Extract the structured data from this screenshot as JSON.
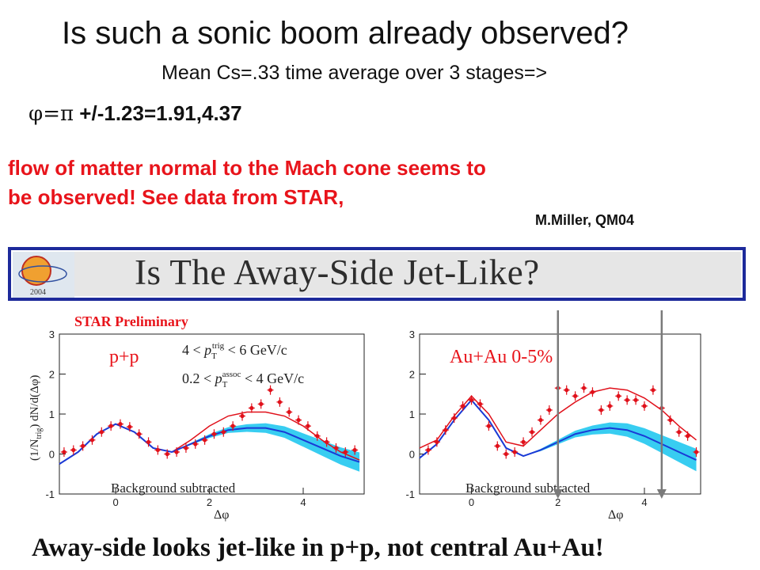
{
  "slide": {
    "title": "Is such a sonic boom  already observed?",
    "subtitle": "Mean Cs=.33 time average over 3 stages=>",
    "phi_symbols": "φ=π",
    "phi_text": " +/-1.23=1.91,4.37",
    "flow_line1": "flow of matter normal to the Mach cone seems to",
    "flow_line2": "be observed! See data from STAR,",
    "credit": "M.Miller, QM04",
    "footer": "Away-side looks jet-like in p+p, not central Au+Au!"
  },
  "banner": {
    "title": "Is The Away-Side Jet-Like?",
    "logo_text": "2004"
  },
  "colors": {
    "red_text": "#e8141b",
    "banner_border": "#1d2a9b",
    "band": "#22c8f0",
    "data_red": "#e0101a",
    "model_blue": "#1a3ad6"
  },
  "chart_data": [
    {
      "type": "scatter",
      "preliminary_label": "STAR Preliminary",
      "system_label": "p+p",
      "cut1_prefix": "4 < ",
      "cut1_sup": "trig",
      "cut1_suffix": " < 6 GeV/c",
      "cut2_prefix": "0.2 < ",
      "cut2_sup": "assoc",
      "cut2_suffix": " < 4 GeV/c",
      "pt_symbol": "p",
      "pt_sub": "T",
      "footnote": "Background subtracted",
      "ylabel_prefix": "(1/N",
      "ylabel_sub": "trig",
      "ylabel_suffix": ") dN/d(Δφ)",
      "xlabel": "Δφ",
      "xlim": [
        -1.2,
        5.3
      ],
      "ylim": [
        -1,
        3
      ],
      "x_ticks": [
        0,
        2,
        4
      ],
      "y_ticks": [
        -1,
        0,
        1,
        2,
        3
      ],
      "x_tick_labels": [
        "0",
        "2",
        "4"
      ],
      "y_tick_labels": [
        "-1",
        "0",
        "1",
        "2",
        "3"
      ],
      "data_x": [
        -1.1,
        -0.9,
        -0.7,
        -0.5,
        -0.3,
        -0.1,
        0.1,
        0.3,
        0.5,
        0.7,
        0.9,
        1.1,
        1.3,
        1.5,
        1.7,
        1.9,
        2.1,
        2.3,
        2.5,
        2.7,
        2.9,
        3.1,
        3.3,
        3.5,
        3.7,
        3.9,
        4.1,
        4.3,
        4.5,
        4.7,
        4.9,
        5.1
      ],
      "data_y": [
        0.05,
        0.1,
        0.2,
        0.35,
        0.55,
        0.7,
        0.75,
        0.68,
        0.5,
        0.3,
        0.1,
        0.0,
        0.05,
        0.15,
        0.25,
        0.35,
        0.5,
        0.55,
        0.7,
        0.95,
        1.15,
        1.25,
        1.6,
        1.3,
        1.05,
        0.85,
        0.7,
        0.45,
        0.3,
        0.15,
        0.05,
        0.1
      ],
      "fit_red_x": [
        -1.2,
        -0.8,
        -0.4,
        0.0,
        0.4,
        0.8,
        1.2,
        1.6,
        2.0,
        2.4,
        2.8,
        3.2,
        3.6,
        4.0,
        4.4,
        4.8,
        5.2
      ],
      "fit_red_y": [
        -0.25,
        0.05,
        0.5,
        0.75,
        0.55,
        0.15,
        0.05,
        0.35,
        0.7,
        0.95,
        1.05,
        1.05,
        0.95,
        0.7,
        0.35,
        0.05,
        -0.15
      ],
      "model_blue_x": [
        -1.2,
        -0.8,
        -0.4,
        0.0,
        0.4,
        0.8,
        1.2,
        1.6,
        2.0,
        2.4,
        2.8,
        3.2,
        3.6,
        4.0,
        4.4,
        4.8,
        5.2
      ],
      "model_blue_y": [
        -0.25,
        0.05,
        0.5,
        0.75,
        0.55,
        0.15,
        0.05,
        0.25,
        0.45,
        0.6,
        0.65,
        0.65,
        0.55,
        0.35,
        0.15,
        -0.05,
        -0.2
      ],
      "band_half_width": 0.12
    },
    {
      "type": "scatter",
      "system_label": "Au+Au 0-5%",
      "footnote": "Background subtracted",
      "xlabel": "Δφ",
      "xlim": [
        -1.2,
        5.3
      ],
      "ylim": [
        -1,
        3
      ],
      "x_ticks": [
        0,
        2,
        4
      ],
      "y_ticks": [
        -1,
        0,
        1,
        2,
        3
      ],
      "x_tick_labels": [
        "0",
        "2",
        "4"
      ],
      "y_tick_labels": [
        "-1",
        "0",
        "1",
        "2",
        "3"
      ],
      "data_x": [
        -1.0,
        -0.8,
        -0.6,
        -0.4,
        -0.2,
        0.0,
        0.2,
        0.4,
        0.6,
        0.8,
        1.0,
        1.2,
        1.4,
        1.6,
        1.8,
        2.0,
        2.2,
        2.4,
        2.6,
        2.8,
        3.0,
        3.2,
        3.4,
        3.6,
        3.8,
        4.0,
        4.2,
        4.4,
        4.6,
        4.8,
        5.0,
        5.2
      ],
      "data_y": [
        0.1,
        0.3,
        0.6,
        0.9,
        1.2,
        1.35,
        1.25,
        0.7,
        0.2,
        0.0,
        0.05,
        0.3,
        0.55,
        0.85,
        1.1,
        1.65,
        1.6,
        1.45,
        1.65,
        1.55,
        1.1,
        1.2,
        1.45,
        1.35,
        1.35,
        1.2,
        1.6,
        1.15,
        0.85,
        0.55,
        0.45,
        0.05
      ],
      "fit_red_x": [
        -1.2,
        -0.8,
        -0.4,
        0.0,
        0.4,
        0.8,
        1.2,
        1.6,
        2.0,
        2.4,
        2.8,
        3.2,
        3.6,
        4.0,
        4.4,
        4.8,
        5.2
      ],
      "fit_red_y": [
        0.15,
        0.35,
        0.95,
        1.45,
        1.0,
        0.3,
        0.2,
        0.6,
        1.0,
        1.3,
        1.55,
        1.65,
        1.6,
        1.4,
        1.1,
        0.7,
        0.35
      ],
      "model_blue_x": [
        -1.2,
        -0.8,
        -0.4,
        0.0,
        0.4,
        0.8,
        1.2,
        1.6,
        2.0,
        2.4,
        2.8,
        3.2,
        3.6,
        4.0,
        4.4,
        4.8,
        5.2
      ],
      "model_blue_y": [
        -0.1,
        0.25,
        0.85,
        1.35,
        0.85,
        0.15,
        -0.05,
        0.1,
        0.3,
        0.5,
        0.6,
        0.65,
        0.6,
        0.45,
        0.25,
        0.05,
        -0.15
      ],
      "band_half_width": 0.14,
      "arrows_x": [
        2.0,
        4.4
      ]
    }
  ]
}
